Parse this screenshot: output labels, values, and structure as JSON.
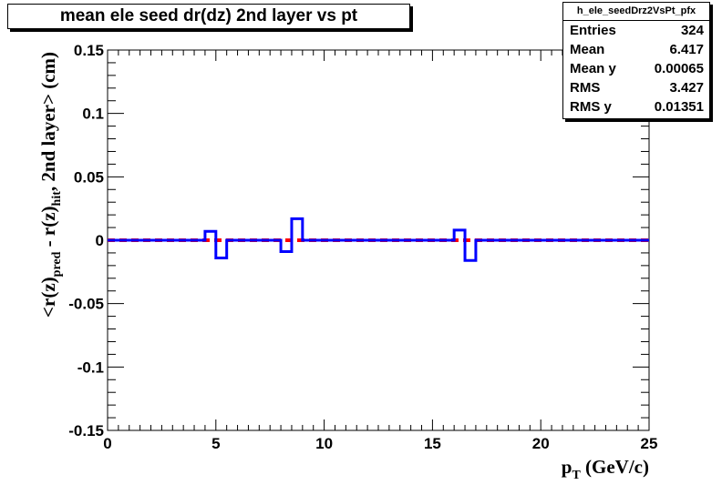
{
  "title": "mean ele seed dr(dz) 2nd layer vs pt",
  "stats": {
    "name": "h_ele_seedDrz2VsPt_pfx",
    "rows": [
      {
        "key": "Entries",
        "value": "324"
      },
      {
        "key": "Mean",
        "value": "6.417"
      },
      {
        "key": "Mean y",
        "value": "0.00065"
      },
      {
        "key": "RMS",
        "value": "3.427"
      },
      {
        "key": "RMS y",
        "value": "0.01351"
      }
    ]
  },
  "chart_data": {
    "type": "line",
    "title": "mean ele seed dr(dz) 2nd layer vs pt",
    "xlim": [
      0,
      25
    ],
    "ylim": [
      -0.15,
      0.15
    ],
    "x_ticks": [
      0,
      5,
      10,
      15,
      20,
      25
    ],
    "y_ticks": [
      -0.15,
      -0.1,
      -0.05,
      0,
      0.05,
      0.1,
      0.15
    ],
    "x_tick_labels": [
      "0",
      "5",
      "10",
      "15",
      "20",
      "25"
    ],
    "y_tick_labels": [
      "-0.15",
      "-0.1",
      "-0.05",
      "0",
      "0.05",
      "0.1",
      "0.15"
    ],
    "xlabel": {
      "main": "p",
      "sub": "T",
      "rest": " (GeV/c)"
    },
    "ylabel": {
      "p1": "<r(z)",
      "s1": "pred",
      "p2": " - r(z)",
      "s2": "hit",
      "p3": ", 2nd layer> (cm)"
    },
    "grid": false,
    "series": [
      {
        "color": "#0000ff",
        "style": "step",
        "bin_width": 0.5,
        "bin_edges_start": 0,
        "values": [
          0,
          0,
          0,
          0,
          0,
          0,
          0,
          0,
          0,
          0.007,
          -0.014,
          0,
          0,
          0,
          0,
          0,
          -0.009,
          0.017,
          0,
          0,
          0,
          0,
          0,
          0,
          0,
          0,
          0,
          0,
          0,
          0,
          0,
          0,
          0.008,
          -0.016,
          0,
          0,
          0,
          0,
          0,
          0,
          0,
          0,
          0,
          0,
          0,
          0,
          0,
          0,
          0,
          0
        ]
      },
      {
        "color": "#ff0000",
        "style": "dashed",
        "x": [
          0,
          25
        ],
        "y": [
          0,
          0
        ]
      }
    ]
  }
}
